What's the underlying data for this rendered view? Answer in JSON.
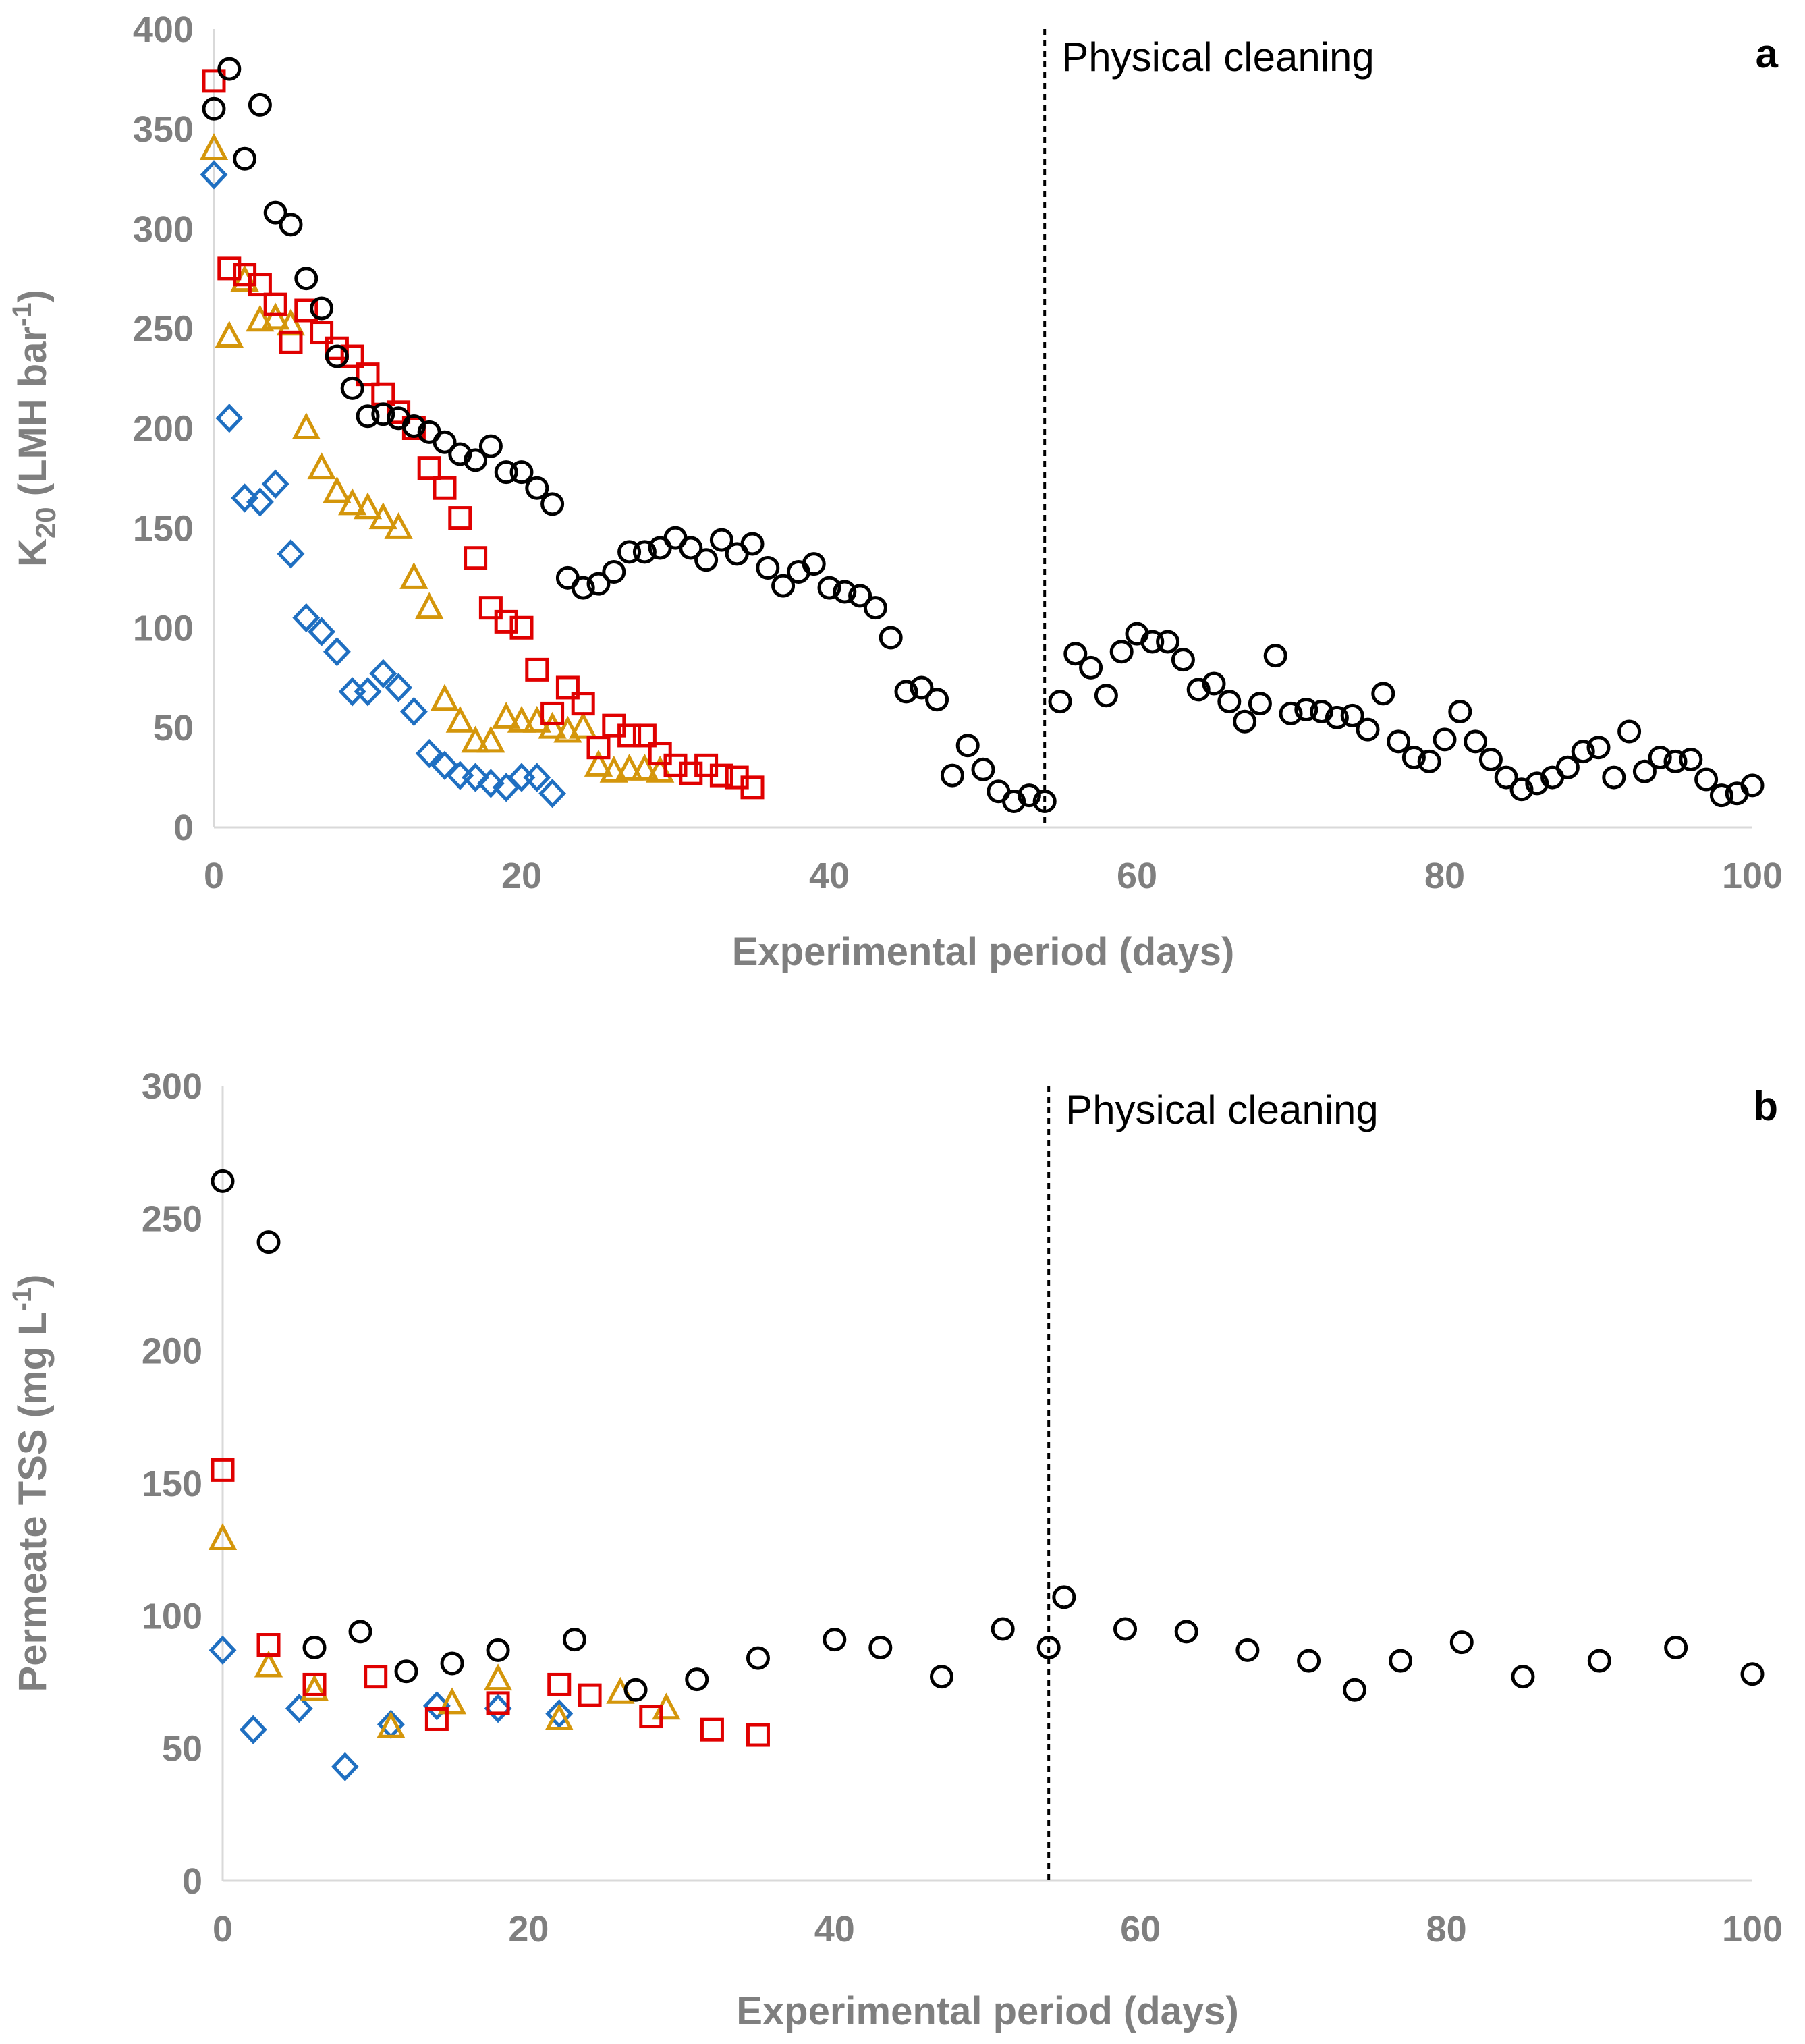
{
  "chart_data": [
    {
      "type": "scatter",
      "panel_label": "a",
      "title": "",
      "xlabel": "Experimental period (days)",
      "ylabel_main": "K",
      "ylabel_sub": "20",
      "ylabel_rest": " (LMH bar",
      "ylabel_sup": "-1",
      "ylabel_end": ")",
      "xlim": [
        0,
        100
      ],
      "ylim": [
        0,
        400
      ],
      "xticks": [
        0,
        20,
        40,
        60,
        80,
        100
      ],
      "yticks": [
        0,
        50,
        100,
        150,
        200,
        250,
        300,
        350,
        400
      ],
      "grid": false,
      "legend": "none",
      "annotation": {
        "text": "Physical cleaning",
        "x": 54
      },
      "series": [
        {
          "name": "circle",
          "marker": "circle",
          "color": "#000000",
          "x": [
            0,
            1,
            2,
            3,
            4,
            5,
            6,
            7,
            8,
            9,
            10,
            11,
            12,
            13,
            14,
            15,
            16,
            17,
            18,
            19,
            20,
            21,
            22,
            23,
            24,
            25,
            26,
            27,
            28,
            29,
            30,
            31,
            32,
            33,
            34,
            35,
            36,
            37,
            38,
            39,
            40,
            41,
            42,
            43,
            44,
            45,
            46,
            47,
            48,
            49,
            50,
            51,
            52,
            53,
            54,
            55,
            56,
            57,
            58,
            59,
            60,
            61,
            62,
            63,
            64,
            65,
            66,
            67,
            68,
            69,
            70,
            71,
            72,
            73,
            74,
            75,
            76,
            77,
            78,
            79,
            80,
            81,
            82,
            83,
            84,
            85,
            86,
            87,
            88,
            89,
            90,
            91,
            92,
            93,
            94,
            95,
            96,
            97,
            98,
            99,
            100
          ],
          "y": [
            360,
            380,
            335,
            362,
            308,
            302,
            275,
            260,
            236,
            220,
            206,
            207,
            205,
            201,
            198,
            193,
            187,
            184,
            191,
            178,
            178,
            170,
            162,
            125,
            120,
            122,
            128,
            138,
            138,
            140,
            145,
            140,
            134,
            144,
            137,
            142,
            130,
            121,
            128,
            132,
            120,
            118,
            116,
            110,
            95,
            68,
            70,
            64,
            26,
            41,
            29,
            18,
            13,
            16,
            13,
            63,
            87,
            80,
            66,
            88,
            97,
            93,
            93,
            84,
            69,
            72,
            63,
            53,
            62,
            86,
            57,
            59,
            58,
            55,
            56,
            49,
            67,
            43,
            35,
            33,
            44,
            58,
            43,
            34,
            25,
            19,
            22,
            25,
            30,
            38,
            40,
            25,
            48,
            28,
            35,
            33,
            34,
            24,
            16,
            17,
            21
          ]
        },
        {
          "name": "square",
          "marker": "square",
          "color": "#e00000",
          "x": [
            0,
            1,
            2,
            3,
            4,
            5,
            6,
            7,
            8,
            9,
            10,
            11,
            12,
            13,
            14,
            15,
            16,
            17,
            18,
            19,
            20,
            21,
            22,
            23,
            24,
            25,
            26,
            27,
            28,
            29,
            30,
            31,
            32,
            33,
            34,
            35
          ],
          "y": [
            374,
            280,
            277,
            272,
            262,
            243,
            259,
            248,
            240,
            236,
            227,
            217,
            208,
            200,
            180,
            170,
            155,
            135,
            110,
            103,
            100,
            79,
            57,
            70,
            62,
            40,
            51,
            46,
            46,
            37,
            31,
            27,
            31,
            26,
            25,
            20
          ]
        },
        {
          "name": "triangle",
          "marker": "triangle",
          "color": "#d4960b",
          "x": [
            0,
            1,
            2,
            3,
            4,
            5,
            6,
            7,
            8,
            9,
            10,
            11,
            12,
            13,
            14,
            15,
            16,
            17,
            18,
            19,
            20,
            21,
            22,
            23,
            24,
            25,
            26,
            27,
            28,
            29
          ],
          "y": [
            340,
            246,
            274,
            254,
            255,
            252,
            200,
            180,
            168,
            162,
            160,
            155,
            150,
            125,
            110,
            64,
            53,
            43,
            43,
            55,
            53,
            53,
            50,
            48,
            50,
            31,
            28,
            29,
            29,
            28
          ]
        },
        {
          "name": "diamond",
          "marker": "diamond",
          "color": "#1f6fc1",
          "x": [
            0,
            1,
            2,
            3,
            4,
            5,
            6,
            7,
            8,
            9,
            10,
            11,
            12,
            13,
            14,
            15,
            16,
            17,
            18,
            19,
            20,
            21,
            22
          ],
          "y": [
            327,
            205,
            165,
            163,
            172,
            137,
            105,
            98,
            88,
            68,
            68,
            77,
            70,
            58,
            37,
            31,
            26,
            25,
            22,
            20,
            25,
            25,
            17
          ]
        }
      ]
    },
    {
      "type": "scatter",
      "panel_label": "b",
      "title": "",
      "xlabel": "Experimental period (days)",
      "ylabel_main": "Permeate TSS (mg L",
      "ylabel_sup": "-1",
      "ylabel_end": ")",
      "xlim": [
        0,
        100
      ],
      "ylim": [
        0,
        300
      ],
      "xticks": [
        0,
        20,
        40,
        60,
        80,
        100
      ],
      "yticks": [
        0,
        50,
        100,
        150,
        200,
        250,
        300
      ],
      "grid": false,
      "legend": "none",
      "annotation": {
        "text": "Physical cleaning",
        "x": 54
      },
      "series": [
        {
          "name": "circle",
          "marker": "circle",
          "color": "#000000",
          "x": [
            0,
            3,
            6,
            9,
            12,
            15,
            18,
            23,
            27,
            31,
            35,
            40,
            43,
            47,
            51,
            54,
            55,
            59,
            63,
            67,
            71,
            74,
            77,
            81,
            85,
            90,
            95,
            100
          ],
          "y": [
            264,
            241,
            88,
            94,
            79,
            82,
            87,
            91,
            72,
            76,
            84,
            91,
            88,
            77,
            95,
            88,
            107,
            95,
            94,
            87,
            83,
            72,
            83,
            90,
            77,
            83,
            88,
            78
          ]
        },
        {
          "name": "square",
          "marker": "square",
          "color": "#e00000",
          "x": [
            0,
            3,
            6,
            10,
            14,
            18,
            22,
            24,
            28,
            32,
            35
          ],
          "y": [
            155,
            89,
            74,
            77,
            61,
            67,
            74,
            70,
            62,
            57,
            55
          ]
        },
        {
          "name": "triangle",
          "marker": "triangle",
          "color": "#d4960b",
          "x": [
            0,
            3,
            6,
            11,
            15,
            18,
            22,
            26,
            29
          ],
          "y": [
            129,
            81,
            72,
            58,
            67,
            76,
            61,
            71,
            65
          ]
        },
        {
          "name": "diamond",
          "marker": "diamond",
          "color": "#1f6fc1",
          "x": [
            0,
            2,
            5,
            8,
            11,
            14,
            18,
            22
          ],
          "y": [
            87,
            57,
            65,
            43,
            59,
            66,
            65,
            63
          ]
        }
      ]
    }
  ]
}
